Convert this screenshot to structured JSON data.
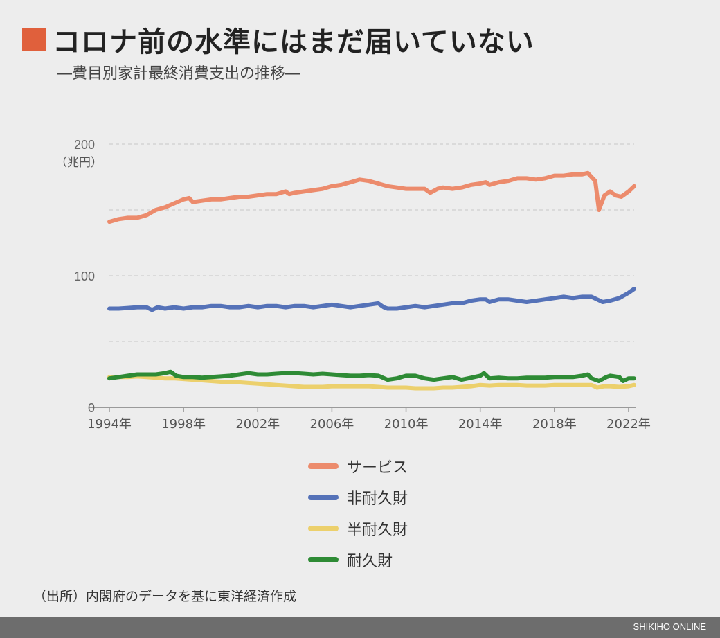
{
  "header": {
    "title": "コロナ前の水準にはまだ届いていない",
    "subtitle": "―費目別家計最終消費支出の推移―",
    "accent_color": "#e0603c"
  },
  "source_note": "（出所）内閣府のデータを基に東洋経済作成",
  "footer": {
    "brand": "SHIKIHO ONLINE"
  },
  "chart_data": {
    "type": "line",
    "ylabel": "（兆円）",
    "ylim": [
      0,
      200
    ],
    "y_ticks": [
      "0",
      "100",
      "200"
    ],
    "xlim": [
      1994,
      2022.3
    ],
    "x_ticks": [
      "1994年",
      "1998年",
      "2002年",
      "2006年",
      "2010年",
      "2014年",
      "2018年",
      "2022年"
    ],
    "grid": true,
    "legend_position": "bottom",
    "series": [
      {
        "name": "サービス",
        "color": "#ec8b6c",
        "points": [
          [
            1994.0,
            141
          ],
          [
            1994.5,
            143
          ],
          [
            1995.0,
            144
          ],
          [
            1995.5,
            144
          ],
          [
            1996.0,
            146
          ],
          [
            1996.5,
            150
          ],
          [
            1997.0,
            152
          ],
          [
            1997.5,
            155
          ],
          [
            1998.0,
            158
          ],
          [
            1998.3,
            159
          ],
          [
            1998.5,
            156
          ],
          [
            1999.0,
            157
          ],
          [
            1999.5,
            158
          ],
          [
            2000.0,
            158
          ],
          [
            2000.5,
            159
          ],
          [
            2001.0,
            160
          ],
          [
            2001.5,
            160
          ],
          [
            2002.0,
            161
          ],
          [
            2002.5,
            162
          ],
          [
            2003.0,
            162
          ],
          [
            2003.5,
            164
          ],
          [
            2003.7,
            162
          ],
          [
            2004.0,
            163
          ],
          [
            2004.5,
            164
          ],
          [
            2005.0,
            165
          ],
          [
            2005.5,
            166
          ],
          [
            2006.0,
            168
          ],
          [
            2006.5,
            169
          ],
          [
            2007.0,
            171
          ],
          [
            2007.5,
            173
          ],
          [
            2008.0,
            172
          ],
          [
            2008.5,
            170
          ],
          [
            2009.0,
            168
          ],
          [
            2009.5,
            167
          ],
          [
            2010.0,
            166
          ],
          [
            2010.5,
            166
          ],
          [
            2011.0,
            166
          ],
          [
            2011.3,
            163
          ],
          [
            2011.7,
            166
          ],
          [
            2012.0,
            167
          ],
          [
            2012.5,
            166
          ],
          [
            2013.0,
            167
          ],
          [
            2013.5,
            169
          ],
          [
            2014.0,
            170
          ],
          [
            2014.3,
            171
          ],
          [
            2014.5,
            169
          ],
          [
            2015.0,
            171
          ],
          [
            2015.5,
            172
          ],
          [
            2016.0,
            174
          ],
          [
            2016.5,
            174
          ],
          [
            2017.0,
            173
          ],
          [
            2017.5,
            174
          ],
          [
            2018.0,
            176
          ],
          [
            2018.5,
            176
          ],
          [
            2019.0,
            177
          ],
          [
            2019.5,
            177
          ],
          [
            2019.8,
            178
          ],
          [
            2020.0,
            175
          ],
          [
            2020.2,
            172
          ],
          [
            2020.4,
            150
          ],
          [
            2020.7,
            161
          ],
          [
            2021.0,
            164
          ],
          [
            2021.3,
            161
          ],
          [
            2021.6,
            160
          ],
          [
            2022.0,
            164
          ],
          [
            2022.3,
            168
          ]
        ]
      },
      {
        "name": "非耐久財",
        "color": "#5572b8",
        "points": [
          [
            1994.0,
            75
          ],
          [
            1994.5,
            75
          ],
          [
            1995.0,
            75.5
          ],
          [
            1995.5,
            76
          ],
          [
            1996.0,
            76
          ],
          [
            1996.3,
            74
          ],
          [
            1996.6,
            76
          ],
          [
            1997.0,
            75
          ],
          [
            1997.5,
            76
          ],
          [
            1998.0,
            75
          ],
          [
            1998.5,
            76
          ],
          [
            1999.0,
            76
          ],
          [
            1999.5,
            77
          ],
          [
            2000.0,
            77
          ],
          [
            2000.5,
            76
          ],
          [
            2001.0,
            76
          ],
          [
            2001.5,
            77
          ],
          [
            2002.0,
            76
          ],
          [
            2002.5,
            77
          ],
          [
            2003.0,
            77
          ],
          [
            2003.5,
            76
          ],
          [
            2004.0,
            77
          ],
          [
            2004.5,
            77
          ],
          [
            2005.0,
            76
          ],
          [
            2005.5,
            77
          ],
          [
            2006.0,
            78
          ],
          [
            2006.5,
            77
          ],
          [
            2007.0,
            76
          ],
          [
            2007.5,
            77
          ],
          [
            2008.0,
            78
          ],
          [
            2008.5,
            79
          ],
          [
            2008.8,
            76
          ],
          [
            2009.0,
            75
          ],
          [
            2009.5,
            75
          ],
          [
            2010.0,
            76
          ],
          [
            2010.5,
            77
          ],
          [
            2011.0,
            76
          ],
          [
            2011.5,
            77
          ],
          [
            2012.0,
            78
          ],
          [
            2012.5,
            79
          ],
          [
            2013.0,
            79
          ],
          [
            2013.5,
            81
          ],
          [
            2014.0,
            82
          ],
          [
            2014.3,
            82
          ],
          [
            2014.5,
            80
          ],
          [
            2015.0,
            82
          ],
          [
            2015.5,
            82
          ],
          [
            2016.0,
            81
          ],
          [
            2016.5,
            80
          ],
          [
            2017.0,
            81
          ],
          [
            2017.5,
            82
          ],
          [
            2018.0,
            83
          ],
          [
            2018.5,
            84
          ],
          [
            2019.0,
            83
          ],
          [
            2019.5,
            84
          ],
          [
            2020.0,
            84
          ],
          [
            2020.3,
            82
          ],
          [
            2020.6,
            80
          ],
          [
            2021.0,
            81
          ],
          [
            2021.5,
            83
          ],
          [
            2022.0,
            87
          ],
          [
            2022.3,
            90
          ]
        ]
      },
      {
        "name": "半耐久財",
        "color": "#ecd06c",
        "points": [
          [
            1994.0,
            23
          ],
          [
            1994.5,
            23
          ],
          [
            1995.0,
            23
          ],
          [
            1995.5,
            23.5
          ],
          [
            1996.0,
            23
          ],
          [
            1996.5,
            22.5
          ],
          [
            1997.0,
            22
          ],
          [
            1997.5,
            22
          ],
          [
            1998.0,
            21.5
          ],
          [
            1998.5,
            21
          ],
          [
            1999.0,
            20.5
          ],
          [
            1999.5,
            20
          ],
          [
            2000.0,
            19.5
          ],
          [
            2000.5,
            19
          ],
          [
            2001.0,
            19
          ],
          [
            2001.5,
            18.5
          ],
          [
            2002.0,
            18
          ],
          [
            2002.5,
            17.5
          ],
          [
            2003.0,
            17
          ],
          [
            2003.5,
            16.5
          ],
          [
            2004.0,
            16
          ],
          [
            2004.5,
            15.5
          ],
          [
            2005.0,
            15.5
          ],
          [
            2005.5,
            15.5
          ],
          [
            2006.0,
            16
          ],
          [
            2006.5,
            16
          ],
          [
            2007.0,
            16
          ],
          [
            2007.5,
            16
          ],
          [
            2008.0,
            16
          ],
          [
            2008.5,
            15.5
          ],
          [
            2009.0,
            15
          ],
          [
            2009.5,
            15
          ],
          [
            2010.0,
            15
          ],
          [
            2010.5,
            14.5
          ],
          [
            2011.0,
            14.5
          ],
          [
            2011.5,
            14.5
          ],
          [
            2012.0,
            15
          ],
          [
            2012.5,
            15
          ],
          [
            2013.0,
            15.5
          ],
          [
            2013.5,
            16
          ],
          [
            2014.0,
            17
          ],
          [
            2014.5,
            16.5
          ],
          [
            2015.0,
            17
          ],
          [
            2015.5,
            17
          ],
          [
            2016.0,
            17
          ],
          [
            2016.5,
            16.5
          ],
          [
            2017.0,
            16.5
          ],
          [
            2017.5,
            16.5
          ],
          [
            2018.0,
            17
          ],
          [
            2018.5,
            17
          ],
          [
            2019.0,
            17
          ],
          [
            2019.5,
            17
          ],
          [
            2020.0,
            17
          ],
          [
            2020.3,
            15
          ],
          [
            2020.7,
            16
          ],
          [
            2021.0,
            16
          ],
          [
            2021.5,
            15.5
          ],
          [
            2022.0,
            16
          ],
          [
            2022.3,
            17
          ]
        ]
      },
      {
        "name": "耐久財",
        "color": "#2e8b35",
        "points": [
          [
            1994.0,
            22
          ],
          [
            1994.5,
            23
          ],
          [
            1995.0,
            24
          ],
          [
            1995.5,
            25
          ],
          [
            1996.0,
            25
          ],
          [
            1996.5,
            25
          ],
          [
            1997.0,
            26
          ],
          [
            1997.3,
            27
          ],
          [
            1997.6,
            24
          ],
          [
            1998.0,
            23
          ],
          [
            1998.5,
            23
          ],
          [
            1999.0,
            22.5
          ],
          [
            1999.5,
            23
          ],
          [
            2000.0,
            23.5
          ],
          [
            2000.5,
            24
          ],
          [
            2001.0,
            25
          ],
          [
            2001.5,
            26
          ],
          [
            2002.0,
            25
          ],
          [
            2002.5,
            25
          ],
          [
            2003.0,
            25.5
          ],
          [
            2003.5,
            26
          ],
          [
            2004.0,
            26
          ],
          [
            2004.5,
            25.5
          ],
          [
            2005.0,
            25
          ],
          [
            2005.5,
            25.5
          ],
          [
            2006.0,
            25
          ],
          [
            2006.5,
            24.5
          ],
          [
            2007.0,
            24
          ],
          [
            2007.5,
            24
          ],
          [
            2008.0,
            24.5
          ],
          [
            2008.5,
            24
          ],
          [
            2009.0,
            21
          ],
          [
            2009.5,
            22
          ],
          [
            2010.0,
            24
          ],
          [
            2010.5,
            24
          ],
          [
            2011.0,
            22
          ],
          [
            2011.5,
            21
          ],
          [
            2012.0,
            22
          ],
          [
            2012.5,
            23
          ],
          [
            2013.0,
            21
          ],
          [
            2013.5,
            22.5
          ],
          [
            2014.0,
            24
          ],
          [
            2014.2,
            26
          ],
          [
            2014.5,
            22
          ],
          [
            2015.0,
            22.5
          ],
          [
            2015.5,
            22
          ],
          [
            2016.0,
            22
          ],
          [
            2016.5,
            22.5
          ],
          [
            2017.0,
            22.5
          ],
          [
            2017.5,
            22.5
          ],
          [
            2018.0,
            23
          ],
          [
            2018.5,
            23
          ],
          [
            2019.0,
            23
          ],
          [
            2019.5,
            24
          ],
          [
            2019.8,
            25
          ],
          [
            2020.0,
            22
          ],
          [
            2020.4,
            20
          ],
          [
            2020.8,
            23
          ],
          [
            2021.0,
            24
          ],
          [
            2021.5,
            23
          ],
          [
            2021.7,
            20
          ],
          [
            2022.0,
            22
          ],
          [
            2022.3,
            22
          ]
        ]
      }
    ]
  }
}
